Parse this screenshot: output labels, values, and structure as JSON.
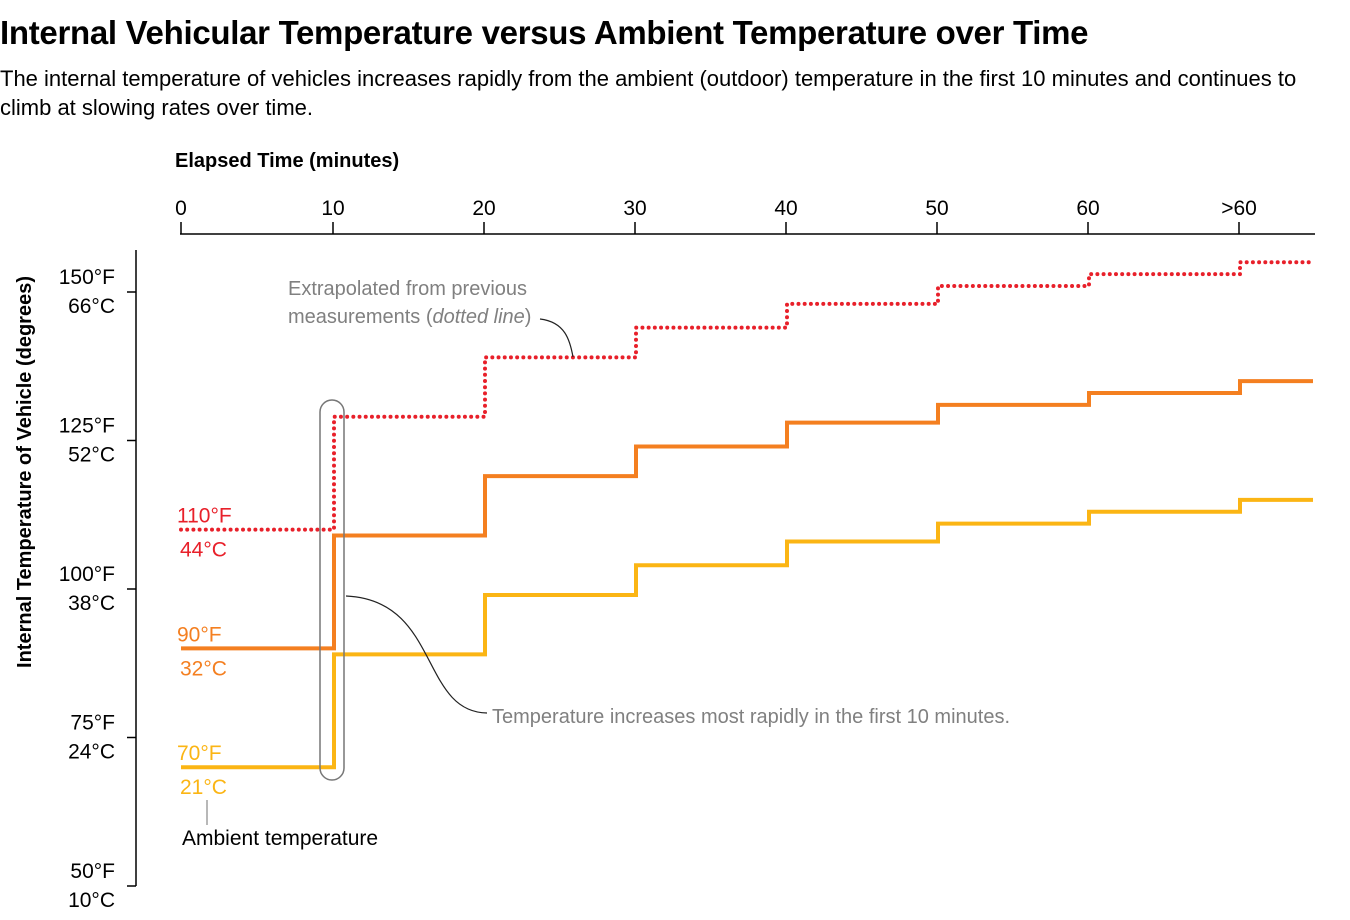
{
  "title": "Internal Vehicular Temperature versus Ambient Temperature over Time",
  "subtitle": "The internal temperature of vehicles increases rapidly from the ambient (outdoor) temperature in the first 10 minutes and continues to climb at slowing rates over time.",
  "chart_data": {
    "type": "line",
    "step": true,
    "title": "Internal Vehicular Temperature versus Ambient Temperature over Time",
    "xlabel": "Elapsed Time (minutes)",
    "ylabel": "Internal Temperature of Vehicle (degrees)",
    "x_axis_position": "top",
    "x_ticks": [
      "0",
      "10",
      "20",
      "30",
      "40",
      "50",
      "60",
      ">60"
    ],
    "y_ticks": [
      {
        "f": 150,
        "f_label": "150°F",
        "c_label": "66°C"
      },
      {
        "f": 125,
        "f_label": "125°F",
        "c_label": "52°C"
      },
      {
        "f": 100,
        "f_label": "100°F",
        "c_label": "38°C"
      },
      {
        "f": 75,
        "f_label": "75°F",
        "c_label": "24°C"
      },
      {
        "f": 50,
        "f_label": "50°F",
        "c_label": "10°C"
      }
    ],
    "ylim": [
      50,
      157
    ],
    "grid": false,
    "series": [
      {
        "start_f": "110°F",
        "start_c": "44°C",
        "color": "#e8202a",
        "style": "dotted",
        "values": [
          110,
          129,
          139,
          144,
          148,
          151,
          153,
          155
        ]
      },
      {
        "start_f": "90°F",
        "start_c": "32°C",
        "color": "#f47f20",
        "style": "solid",
        "values": [
          90,
          109,
          119,
          124,
          128,
          131,
          133,
          135
        ]
      },
      {
        "start_f": "70°F",
        "start_c": "21°C",
        "color": "#fbb514",
        "style": "solid",
        "values": [
          70,
          89,
          99,
          104,
          108,
          111,
          113,
          115
        ]
      }
    ],
    "annotations": {
      "extrapolated_line1": "Extrapolated from previous",
      "extrapolated_line2_pre": "measurements (",
      "extrapolated_line2_italic": "dotted line",
      "extrapolated_line2_post": ")",
      "rapid": "Temperature increases most rapidly in the first 10 minutes.",
      "ambient": "Ambient temperature"
    }
  }
}
